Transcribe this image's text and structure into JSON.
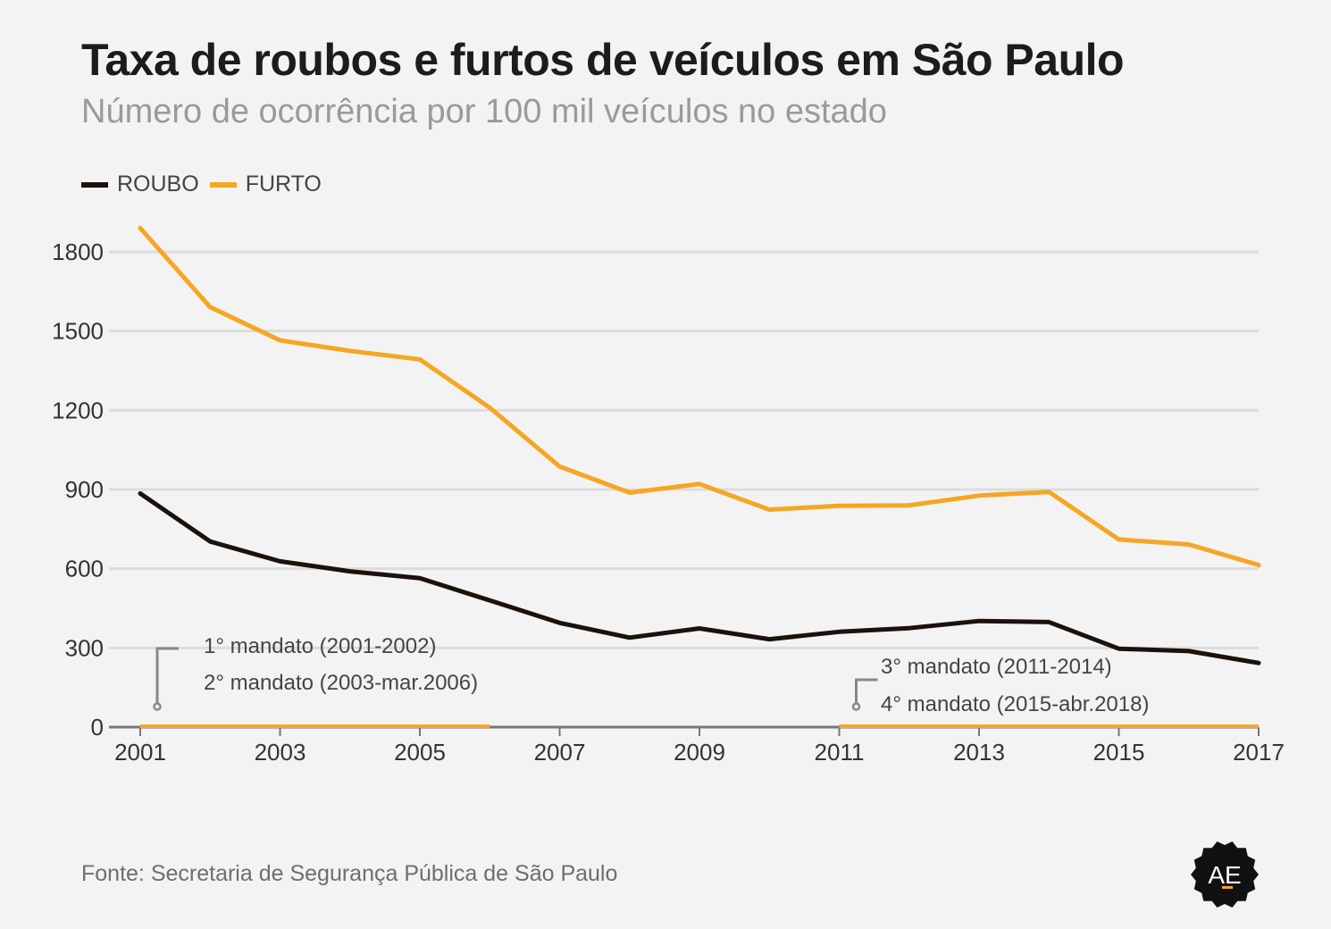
{
  "title": "Taxa de roubos e furtos de veículos em São Paulo",
  "subtitle": "Número de ocorrência por 100 mil veículos no estado",
  "source": "Fonte: Secretaria de Segurança Pública de São Paulo",
  "logo_text": "AE",
  "colors": {
    "roubo": "#1a120b",
    "furto": "#f5a623",
    "grid": "#dcdcdc",
    "baseline": "#777777",
    "annotation": "#888888"
  },
  "chart_data": {
    "type": "line",
    "title": "Taxa de roubos e furtos de veículos em São Paulo",
    "subtitle": "Número de ocorrência por 100 mil veículos no estado",
    "x": [
      2001,
      2002,
      2003,
      2004,
      2005,
      2006,
      2007,
      2008,
      2009,
      2010,
      2011,
      2012,
      2013,
      2014,
      2015,
      2016,
      2017
    ],
    "x_ticks": [
      "2001",
      "2003",
      "2005",
      "2007",
      "2009",
      "2011",
      "2013",
      "2015",
      "2017"
    ],
    "y_ticks": [
      "0",
      "300",
      "600",
      "900",
      "1200",
      "1500",
      "1800"
    ],
    "ylim": [
      0,
      1800
    ],
    "grid": true,
    "legend_position": "top-left",
    "series": [
      {
        "name": "ROUBO",
        "color": "#1a120b",
        "values": [
          885,
          703,
          628,
          590,
          564,
          480,
          395,
          339,
          374,
          333,
          361,
          375,
          402,
          398,
          297,
          288,
          243
        ]
      },
      {
        "name": "FURTO",
        "color": "#f5a623",
        "values": [
          1890,
          1591,
          1465,
          1425,
          1393,
          1210,
          987,
          888,
          921,
          824,
          838,
          840,
          877,
          891,
          711,
          692,
          614
        ]
      }
    ],
    "annotations": [
      {
        "range": [
          2001,
          2006
        ],
        "lines": [
          "1° mandato (2001-2002)",
          "2° mandato (2003-mar.2006)"
        ]
      },
      {
        "range": [
          2011,
          2017
        ],
        "lines": [
          "3° mandato (2011-2014)",
          "4° mandato (2015-abr.2018)"
        ]
      }
    ]
  }
}
